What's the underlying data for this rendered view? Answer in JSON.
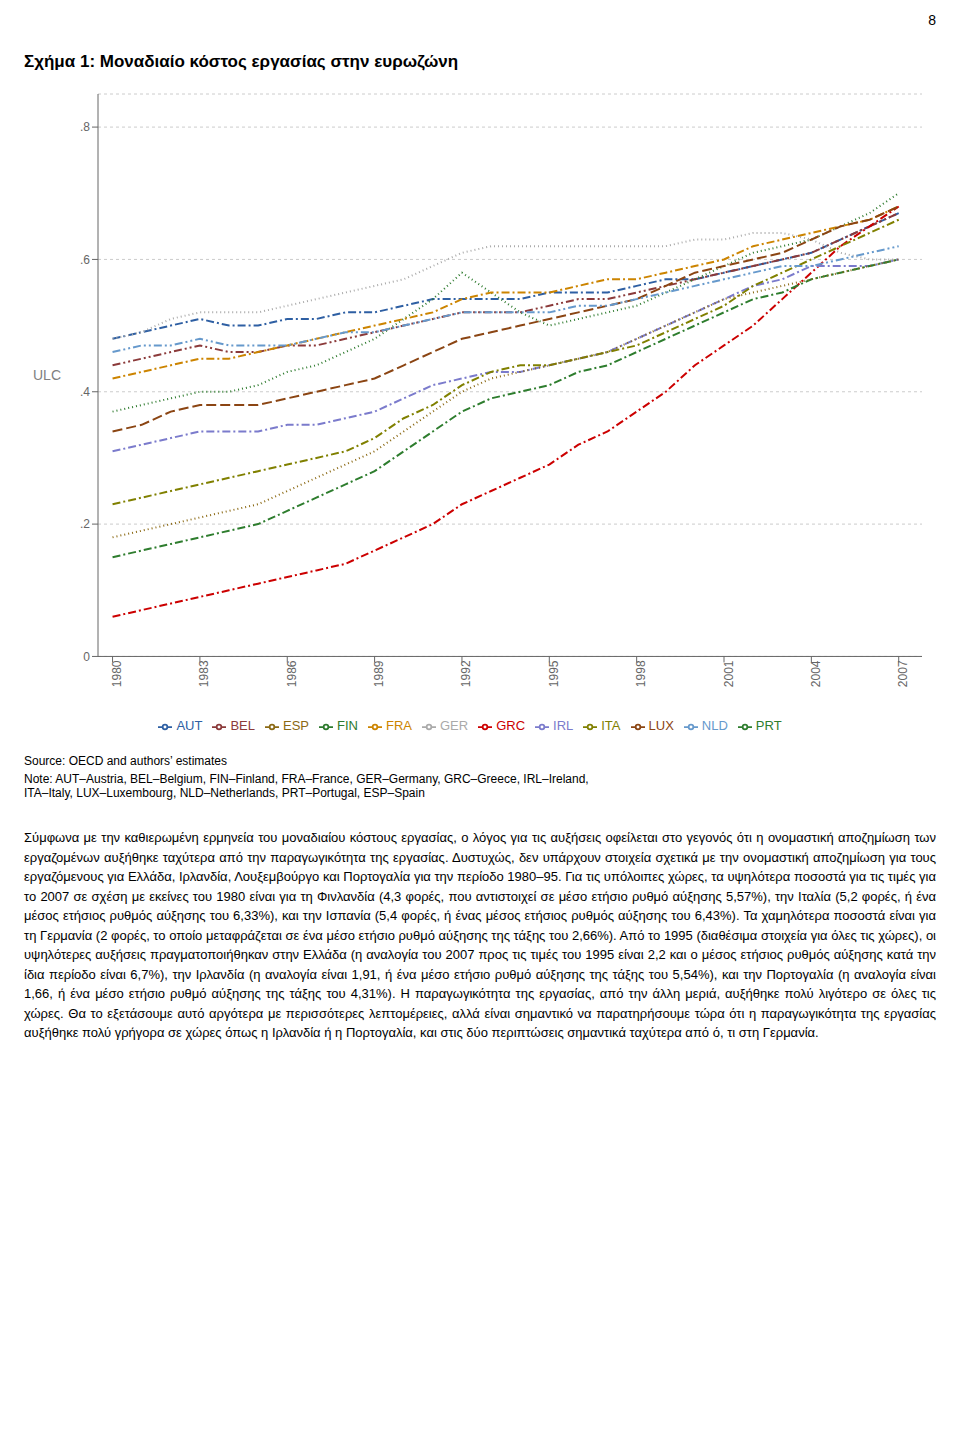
{
  "chart_data": {
    "type": "line",
    "title": "Σχήμα 1: Μοναδιαίο κόστος εργασίας στην ευρωζώνη",
    "ylabel": "ULC",
    "x": [
      1980,
      1981,
      1982,
      1983,
      1984,
      1985,
      1986,
      1987,
      1988,
      1989,
      1990,
      1991,
      1992,
      1993,
      1994,
      1995,
      1996,
      1997,
      1998,
      1999,
      2000,
      2001,
      2002,
      2003,
      2004,
      2005,
      2006,
      2007
    ],
    "xlim": [
      1979.5,
      2007.8
    ],
    "xticks": [
      1980,
      1983,
      1986,
      1989,
      1992,
      1995,
      1998,
      2001,
      2004,
      2007
    ],
    "ylim": [
      0,
      0.85
    ],
    "yticks": [
      0,
      {
        "value": 0.2,
        "label": ".2"
      },
      {
        "value": 0.4,
        "label": ".4"
      },
      {
        "value": 0.6,
        "label": ".6"
      },
      {
        "value": 0.8,
        "label": ".8"
      }
    ],
    "grid": true,
    "legend": "bottom",
    "series": [
      {
        "name": "AUT",
        "color": "#2e5fa3",
        "line_style": "dashdot",
        "values": [
          0.48,
          0.49,
          0.5,
          0.51,
          0.5,
          0.5,
          0.51,
          0.51,
          0.52,
          0.52,
          0.53,
          0.54,
          0.54,
          0.54,
          0.54,
          0.55,
          0.55,
          0.55,
          0.56,
          0.57,
          0.57,
          0.58,
          0.59,
          0.6,
          0.61,
          0.63,
          0.65,
          0.67
        ]
      },
      {
        "name": "BEL",
        "color": "#8b3a3a",
        "line_style": "dashdotdot",
        "values": [
          0.44,
          0.45,
          0.46,
          0.47,
          0.46,
          0.46,
          0.47,
          0.47,
          0.48,
          0.49,
          0.5,
          0.51,
          0.52,
          0.52,
          0.52,
          0.53,
          0.54,
          0.54,
          0.55,
          0.56,
          0.57,
          0.58,
          0.59,
          0.6,
          0.61,
          0.63,
          0.65,
          0.67
        ]
      },
      {
        "name": "FIN",
        "color": "#2d7a2d",
        "line_style": "dotted",
        "values": [
          0.37,
          0.38,
          0.39,
          0.4,
          0.4,
          0.41,
          0.43,
          0.44,
          0.46,
          0.48,
          0.51,
          0.54,
          0.58,
          0.55,
          0.52,
          0.5,
          0.51,
          0.52,
          0.53,
          0.55,
          0.57,
          0.59,
          0.61,
          0.62,
          0.63,
          0.65,
          0.67,
          0.7
        ]
      },
      {
        "name": "FRA",
        "color": "#cc8400",
        "line_style": "dashdot",
        "values": [
          0.42,
          0.43,
          0.44,
          0.45,
          0.45,
          0.46,
          0.47,
          0.48,
          0.49,
          0.5,
          0.51,
          0.52,
          0.54,
          0.55,
          0.55,
          0.55,
          0.56,
          0.57,
          0.57,
          0.58,
          0.59,
          0.6,
          0.62,
          0.63,
          0.64,
          0.65,
          0.66,
          0.68
        ]
      },
      {
        "name": "GER",
        "color": "#aaaaaa",
        "line_style": "dotted",
        "values": [
          0.48,
          0.49,
          0.51,
          0.52,
          0.52,
          0.52,
          0.53,
          0.54,
          0.55,
          0.56,
          0.57,
          0.59,
          0.61,
          0.62,
          0.62,
          0.62,
          0.62,
          0.62,
          0.62,
          0.62,
          0.63,
          0.63,
          0.64,
          0.64,
          0.63,
          0.61,
          0.6,
          0.6
        ]
      },
      {
        "name": "GRC",
        "color": "#cc0000",
        "line_style": "dashdot",
        "values": [
          0.06,
          0.07,
          0.08,
          0.09,
          0.1,
          0.11,
          0.12,
          0.13,
          0.14,
          0.16,
          0.18,
          0.2,
          0.23,
          0.25,
          0.27,
          0.29,
          0.32,
          0.34,
          0.37,
          0.4,
          0.44,
          0.47,
          0.5,
          0.54,
          0.58,
          0.62,
          0.65,
          0.68
        ]
      },
      {
        "name": "IRL",
        "color": "#7b7bcc",
        "line_style": "dashdot",
        "values": [
          0.31,
          0.32,
          0.33,
          0.34,
          0.34,
          0.34,
          0.35,
          0.35,
          0.36,
          0.37,
          0.39,
          0.41,
          0.42,
          0.43,
          0.43,
          0.44,
          0.45,
          0.46,
          0.48,
          0.5,
          0.52,
          0.54,
          0.56,
          0.57,
          0.59,
          0.59,
          0.59,
          0.6
        ]
      },
      {
        "name": "ITA",
        "color": "#808000",
        "line_style": "dashdot",
        "values": [
          0.23,
          0.24,
          0.25,
          0.26,
          0.27,
          0.28,
          0.29,
          0.3,
          0.31,
          0.33,
          0.36,
          0.38,
          0.41,
          0.43,
          0.44,
          0.44,
          0.45,
          0.46,
          0.47,
          0.49,
          0.51,
          0.53,
          0.56,
          0.58,
          0.6,
          0.62,
          0.64,
          0.66
        ]
      },
      {
        "name": "LUX",
        "color": "#8b4513",
        "line_style": "dashed",
        "values": [
          0.34,
          0.35,
          0.37,
          0.38,
          0.38,
          0.38,
          0.39,
          0.4,
          0.41,
          0.42,
          0.44,
          0.46,
          0.48,
          0.49,
          0.5,
          0.51,
          0.52,
          0.53,
          0.54,
          0.56,
          0.58,
          0.59,
          0.6,
          0.61,
          0.63,
          0.65,
          0.66,
          0.68
        ]
      },
      {
        "name": "NLD",
        "color": "#6699cc",
        "line_style": "dashdotdot",
        "values": [
          0.46,
          0.47,
          0.47,
          0.48,
          0.47,
          0.47,
          0.47,
          0.48,
          0.49,
          0.49,
          0.5,
          0.51,
          0.52,
          0.52,
          0.52,
          0.52,
          0.53,
          0.53,
          0.54,
          0.55,
          0.56,
          0.57,
          0.58,
          0.59,
          0.59,
          0.6,
          0.61,
          0.62
        ]
      },
      {
        "name": "PRT",
        "color": "#2e7d2e",
        "line_style": "dashdot",
        "values": [
          0.15,
          0.16,
          0.17,
          0.18,
          0.19,
          0.2,
          0.22,
          0.24,
          0.26,
          0.28,
          0.31,
          0.34,
          0.37,
          0.39,
          0.4,
          0.41,
          0.43,
          0.44,
          0.46,
          0.48,
          0.5,
          0.52,
          0.54,
          0.55,
          0.57,
          0.58,
          0.59,
          0.6
        ]
      },
      {
        "name": "ESP",
        "color": "#8b6914",
        "line_style": "dotted",
        "values": [
          0.18,
          0.19,
          0.2,
          0.21,
          0.22,
          0.23,
          0.25,
          0.27,
          0.29,
          0.31,
          0.34,
          0.37,
          0.4,
          0.42,
          0.43,
          0.44,
          0.45,
          0.46,
          0.48,
          0.5,
          0.52,
          0.54,
          0.55,
          0.56,
          0.57,
          0.58,
          0.59,
          0.6
        ]
      }
    ],
    "annotations": [
      "8",
      "Source: OECD and authors’ estimates",
      "Note: AUT–Austria, BEL–Belgium, FIN–Finland, FRA–France, GER–Germany, GRC–Greece, IRL–Ireland,\nITA–Italy, LUX–Luxembourg, NLD–Netherlands, PRT–Portugal, ESP–Spain",
      "Σύμφωνα με την καθιερωμένη ερμηνεία του μοναδιαίου κόστους εργασίας, ο λόγος για τις αυξήσεις οφείλεται στο γεγονός ότι η ονομαστική αποζημίωση των εργαζομένων αυξήθηκε ταχύτερα από την παραγωγικότητα της εργασίας. Δυστυχώς, δεν υπάρχουν στοιχεία σχετικά με την ονομαστική αποζημίωση για τους εργαζόμενους για Ελλάδα, Ιρλανδία, Λουξεμβούργο και Πορτογαλία για την περίοδο 1980–95. Για τις υπόλοιπες χώρες, τα υψηλότερα ποσοστά για τις τιμές για το 2007 σε σχέση με εκείνες του 1980 είναι για τη Φινλανδία (4,3 φορές, που αντιστοιχεί σε μέσο ετήσιο ρυθμό αύξησης 5,57%), την Ιταλία (5,2 φορές, ή ένα μέσος ετήσιος ρυθμός αύξησης του 6,33%), και την Ισπανία (5,4 φορές, ή ένας μέσος ετήσιος ρυθμός αύξησης του 6,43%). Τα χαμηλότερα ποσοστά είναι για τη Γερμανία (2 φορές, το οποίο μεταφράζεται σε ένα μέσο ετήσιο ρυθμό αύξησης της τάξης του 2,66%). Από το 1995 (διαθέσιμα στοιχεία για όλες τις χώρες), οι υψηλότερες αυξήσεις πραγματοποιήθηκαν στην Ελλάδα (η αναλογία του 2007 προς τις τιμές του 1995 είναι 2,2 και ο μέσος ετήσιος ρυθμός αύξησης κατά την ίδια περίοδο είναι 6,7%), την Ιρλανδία (η αναλογία είναι 1,91, ή ένα μέσο ετήσιο ρυθμό αύξησης της τάξης του 5,54%), και την Πορτογαλία (η αναλογία είναι 1,66, ή ένα μέσο ετήσιο ρυθμό αύξησης της τάξης του 4,31%). Η παραγωγικότητα της εργασίας, από την άλλη μεριά, αυξήθηκε πολύ λιγότερο σε όλες τις χώρες. Θα το εξετάσουμε αυτό αργότερα με περισσότερες λεπτομέρειες, αλλά είναι σημαντικό να παρατηρήσουμε τώρα ότι η παραγωγικότητα της εργασίας αυξήθηκε πολύ γρήγορα σε χώρες όπως η Ιρλανδία ή η Πορτογαλία, και στις δύο περιπτώσεις σημαντικά ταχύτερα από ό, τι στη Γερμανία."
    ]
  }
}
